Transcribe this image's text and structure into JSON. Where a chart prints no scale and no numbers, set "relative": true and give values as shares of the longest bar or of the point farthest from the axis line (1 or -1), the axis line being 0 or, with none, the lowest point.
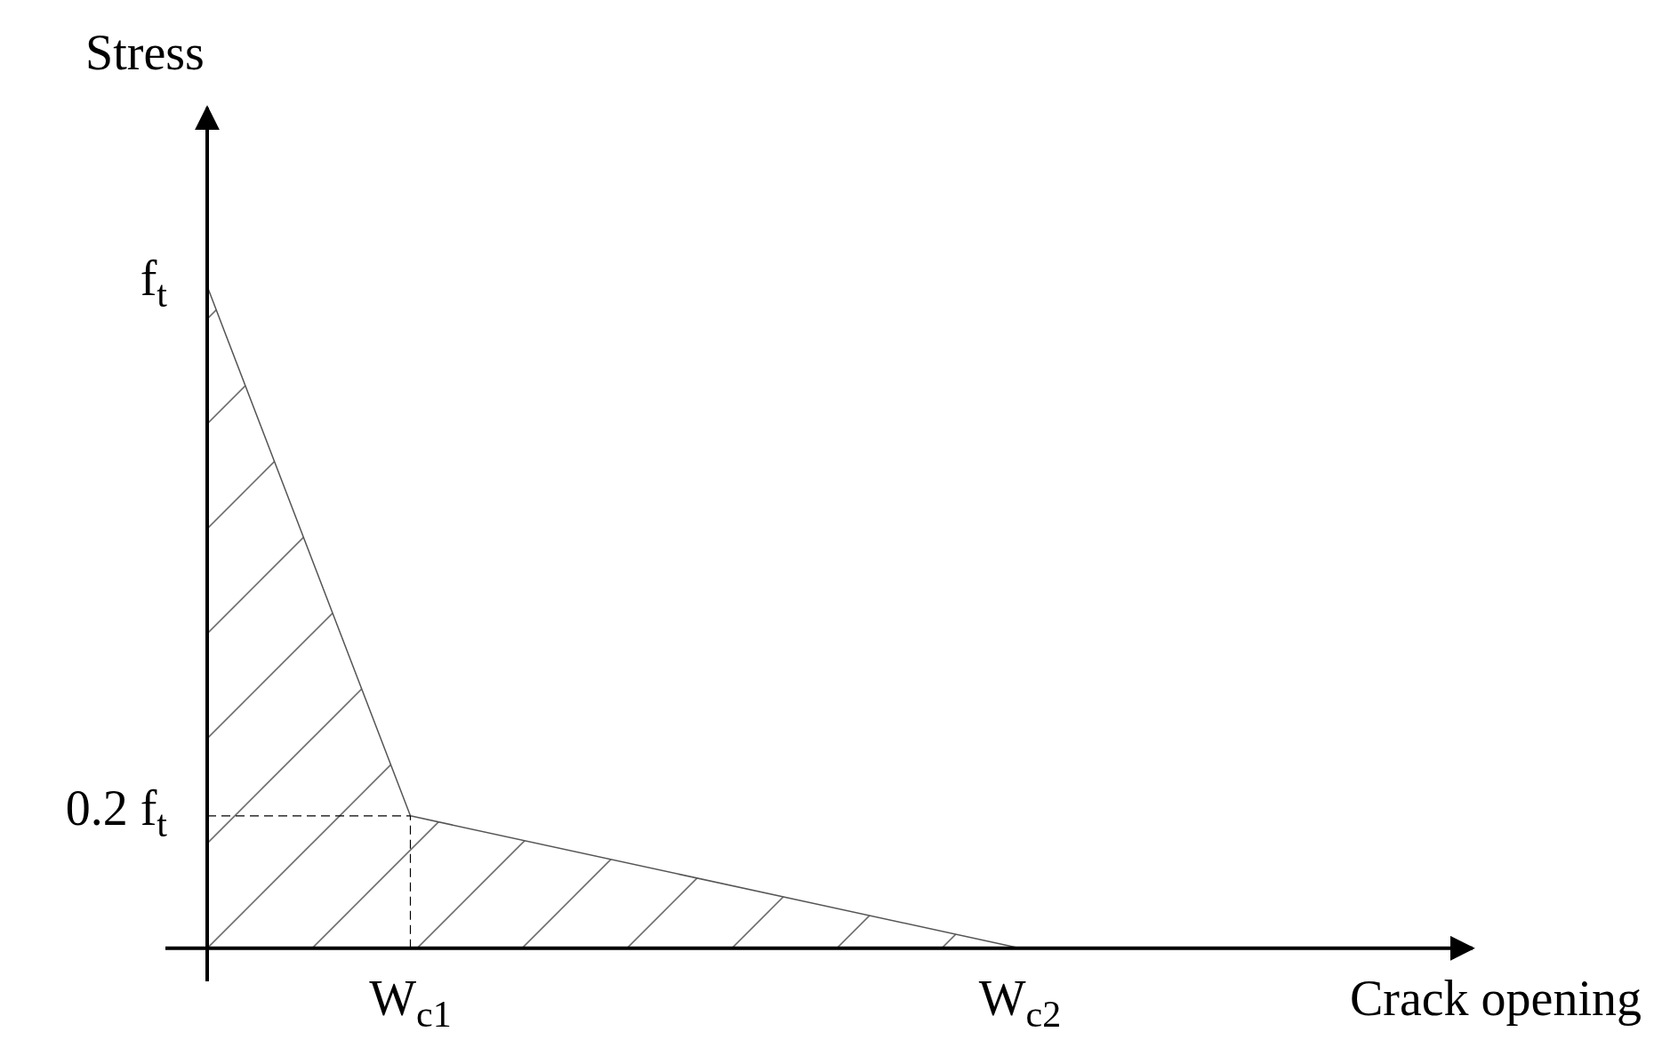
{
  "chart_data": {
    "type": "area",
    "relative": true,
    "xlabel": "Crack opening",
    "ylabel": "Stress",
    "categories": [
      null,
      "W$_{c1}$",
      null,
      null,
      "W$_{c2}$"
    ],
    "values": [
      1,
      0.2,
      null,
      null,
      0
    ],
    "color": "#555555",
    "annotations": [
      "f$_{t}$"
    ],
    "ref_lines": [
      {
        "axis": "y",
        "value": 0.2,
        "label": "0.2 f$_{t}$",
        "line_style": "dashed",
        "color": "#000000"
      },
      {
        "axis": "x",
        "value": "W$_{c1}$",
        "line_style": "dashed",
        "color": "#000000"
      }
    ]
  }
}
